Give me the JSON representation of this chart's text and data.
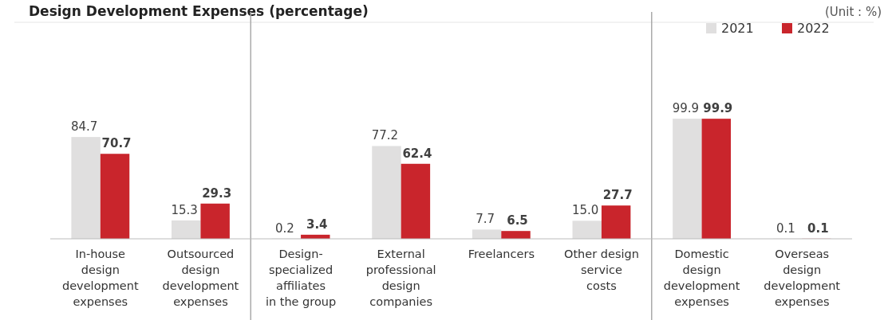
{
  "chart_data": {
    "type": "bar",
    "title": "Design Development Expenses (percentage)",
    "annotations": [
      "(Unit : %)"
    ],
    "categories": [
      "In-house design development expenses",
      "Outsourced design development expenses",
      "Design-specialized affiliates in the group",
      "External professional design companies",
      "Freelancers",
      "Other design service costs",
      "Domestic design development expenses",
      "Overseas design development expenses"
    ],
    "series": [
      {
        "name": "2021",
        "color": "#e0dfdf",
        "values": [
          84.7,
          15.3,
          0.2,
          77.2,
          7.7,
          15.0,
          99.9,
          0.1
        ],
        "value_labels": [
          "84.7",
          "15.3",
          "0.2",
          "77.2",
          "7.7",
          "15.0",
          "99.9",
          "0.1"
        ]
      },
      {
        "name": "2022",
        "color": "#c9252c",
        "values": [
          70.7,
          29.3,
          3.4,
          62.4,
          6.5,
          27.7,
          99.9,
          0.1
        ],
        "value_labels": [
          "70.7",
          "29.3",
          "3.4",
          "62.4",
          "6.5",
          "27.7",
          "99.9",
          "0.1"
        ]
      }
    ],
    "ylim": [
      0,
      100
    ],
    "tick_labels": "x",
    "legend": "top right"
  }
}
